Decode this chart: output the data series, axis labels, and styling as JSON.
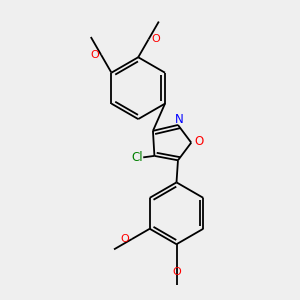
{
  "background_color": "#efefef",
  "bond_color": "#000000",
  "bond_width": 1.3,
  "figsize": [
    3.0,
    3.0
  ],
  "dpi": 100,
  "text_fontsize": 7.5,
  "xlim": [
    0,
    10
  ],
  "ylim": [
    0,
    10
  ]
}
